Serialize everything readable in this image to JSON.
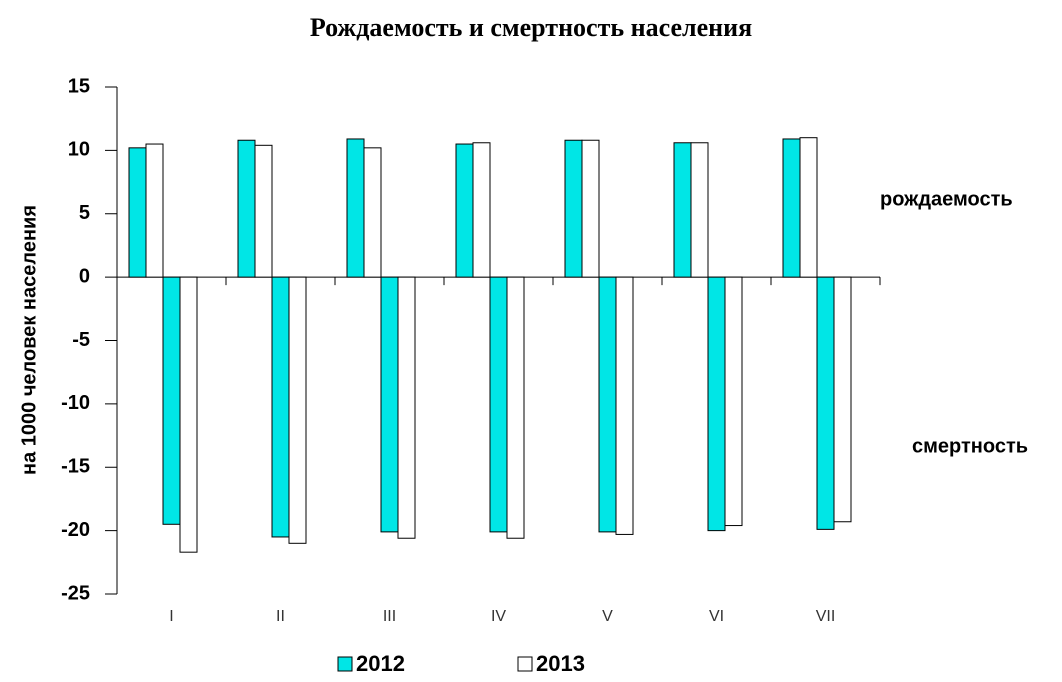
{
  "chart_data": {
    "type": "bar",
    "title": "Рождаемость и смертность населения",
    "y_label": "на 1000 человек населения",
    "annotations": [
      "рождаемость",
      "смертность"
    ],
    "categories": [
      "I",
      "II",
      "III",
      "IV",
      "V",
      "VI",
      "VII"
    ],
    "series": [
      {
        "name": "2012",
        "color": "#00e6e6",
        "values": [
          10.2,
          10.8,
          10.9,
          10.5,
          10.8,
          10.6,
          10.9
        ],
        "death_values": [
          -19.5,
          -20.5,
          -20.1,
          -20.1,
          -20.1,
          -20.0,
          -19.9
        ]
      },
      {
        "name": "2013",
        "color": "#ffffff",
        "values": [
          10.5,
          10.4,
          10.2,
          10.6,
          10.8,
          10.6,
          11.0
        ],
        "death_values": [
          -21.7,
          -21.0,
          -20.6,
          -20.6,
          -20.3,
          -19.6,
          -19.3
        ]
      }
    ],
    "ylim": [
      -25,
      15
    ],
    "yticks": [
      -25,
      -20,
      -15,
      -10,
      -5,
      0,
      5,
      10,
      15
    ],
    "grid": false
  }
}
